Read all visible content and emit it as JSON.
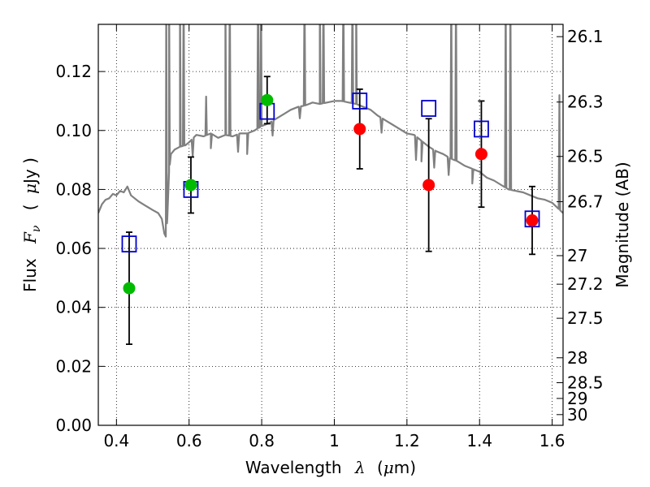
{
  "chart_data": {
    "type": "scatter",
    "xlabel_text": "Wavelength",
    "xlabel_symbol": "λ",
    "xlabel_unit_open": "(",
    "xlabel_unit_mu": "μ",
    "xlabel_unit_rest": "m)",
    "ylabel_text": "Flux",
    "ylabel_symbol": "F",
    "ylabel_sub": "ν",
    "ylabel_unit_open": "(",
    "ylabel_unit_mu": "μ",
    "ylabel_unit_rest": "Jy )",
    "y2label": "Magnitude (AB)",
    "xlim": [
      0.35,
      1.63
    ],
    "ylim": [
      0.0,
      0.136
    ],
    "xticks": [
      0.4,
      0.6,
      0.8,
      1.0,
      1.2,
      1.4,
      1.6
    ],
    "xtick_labels": [
      "0.4",
      "0.6",
      "0.8",
      "1",
      "1.2",
      "1.4",
      "1.6"
    ],
    "yticks": [
      0.0,
      0.02,
      0.04,
      0.06,
      0.08,
      0.1,
      0.12
    ],
    "ytick_labels": [
      "0.00",
      "0.02",
      "0.04",
      "0.06",
      "0.08",
      "0.10",
      "0.12"
    ],
    "mag_ticks": [
      26.1,
      26.3,
      26.5,
      26.7,
      27,
      27.2,
      27.5,
      28,
      28.5,
      29,
      30
    ],
    "mag_tick_labels": [
      "26.1",
      "26.3",
      "26.5",
      "26.7",
      "27",
      "27.2",
      "27.5",
      "28",
      "28.5",
      "29",
      "30"
    ],
    "grid": true,
    "colors": {
      "spectrum": "#808080",
      "model_box": "#0000cc",
      "detection_green": "#00bb00",
      "detection_red": "#ff0000",
      "errorbar": "#000000"
    },
    "model_points": [
      {
        "x": 0.435,
        "y": 0.0615
      },
      {
        "x": 0.605,
        "y": 0.08
      },
      {
        "x": 0.815,
        "y": 0.1065
      },
      {
        "x": 1.07,
        "y": 0.11
      },
      {
        "x": 1.26,
        "y": 0.1075
      },
      {
        "x": 1.405,
        "y": 0.1005
      },
      {
        "x": 1.545,
        "y": 0.07
      }
    ],
    "observed_points": [
      {
        "x": 0.435,
        "y": 0.0465,
        "err": 0.019,
        "color": "green"
      },
      {
        "x": 0.605,
        "y": 0.0815,
        "err": 0.0095,
        "color": "green"
      },
      {
        "x": 0.815,
        "y": 0.1103,
        "err": 0.008,
        "color": "green"
      },
      {
        "x": 1.07,
        "y": 0.1005,
        "err": 0.0135,
        "color": "red"
      },
      {
        "x": 1.26,
        "y": 0.0815,
        "err": 0.0225,
        "color": "red"
      },
      {
        "x": 1.405,
        "y": 0.092,
        "err": 0.018,
        "color": "red"
      },
      {
        "x": 1.545,
        "y": 0.0695,
        "err": 0.0115,
        "color": "red"
      }
    ],
    "spectrum": [
      [
        0.35,
        0.072
      ],
      [
        0.36,
        0.075
      ],
      [
        0.37,
        0.0765
      ],
      [
        0.38,
        0.077
      ],
      [
        0.39,
        0.0785
      ],
      [
        0.4,
        0.078
      ],
      [
        0.41,
        0.0795
      ],
      [
        0.42,
        0.079
      ],
      [
        0.43,
        0.081
      ],
      [
        0.44,
        0.078
      ],
      [
        0.45,
        0.077
      ],
      [
        0.46,
        0.076
      ],
      [
        0.48,
        0.0745
      ],
      [
        0.5,
        0.073
      ],
      [
        0.515,
        0.072
      ],
      [
        0.525,
        0.07
      ],
      [
        0.532,
        0.065
      ],
      [
        0.536,
        0.064
      ],
      [
        0.54,
        0.07
      ],
      [
        0.545,
        0.086
      ],
      [
        0.55,
        0.092
      ],
      [
        0.56,
        0.0935
      ],
      [
        0.575,
        0.0945
      ],
      [
        0.59,
        0.095
      ],
      [
        0.6,
        0.096
      ],
      [
        0.62,
        0.0985
      ],
      [
        0.64,
        0.098
      ],
      [
        0.66,
        0.099
      ],
      [
        0.68,
        0.0975
      ],
      [
        0.7,
        0.0985
      ],
      [
        0.72,
        0.098
      ],
      [
        0.74,
        0.099
      ],
      [
        0.76,
        0.099
      ],
      [
        0.78,
        0.1
      ],
      [
        0.8,
        0.1015
      ],
      [
        0.82,
        0.1025
      ],
      [
        0.84,
        0.104
      ],
      [
        0.86,
        0.1055
      ],
      [
        0.88,
        0.107
      ],
      [
        0.9,
        0.108
      ],
      [
        0.92,
        0.1085
      ],
      [
        0.94,
        0.1095
      ],
      [
        0.96,
        0.109
      ],
      [
        0.98,
        0.1095
      ],
      [
        1.0,
        0.11
      ],
      [
        1.02,
        0.11
      ],
      [
        1.04,
        0.1095
      ],
      [
        1.06,
        0.109
      ],
      [
        1.08,
        0.108
      ],
      [
        1.1,
        0.107
      ],
      [
        1.12,
        0.105
      ],
      [
        1.14,
        0.1035
      ],
      [
        1.16,
        0.102
      ],
      [
        1.18,
        0.1005
      ],
      [
        1.2,
        0.099
      ],
      [
        1.22,
        0.0985
      ],
      [
        1.24,
        0.0965
      ],
      [
        1.26,
        0.0945
      ],
      [
        1.28,
        0.093
      ],
      [
        1.3,
        0.092
      ],
      [
        1.32,
        0.0905
      ],
      [
        1.34,
        0.0895
      ],
      [
        1.36,
        0.088
      ],
      [
        1.38,
        0.087
      ],
      [
        1.4,
        0.086
      ],
      [
        1.42,
        0.084
      ],
      [
        1.44,
        0.083
      ],
      [
        1.46,
        0.0815
      ],
      [
        1.48,
        0.08
      ],
      [
        1.5,
        0.0795
      ],
      [
        1.52,
        0.079
      ],
      [
        1.54,
        0.078
      ],
      [
        1.56,
        0.077
      ],
      [
        1.58,
        0.0765
      ],
      [
        1.6,
        0.0755
      ],
      [
        1.63,
        0.072
      ]
    ],
    "emission_lines": [
      {
        "x": 0.537,
        "peak": 0.15
      },
      {
        "x": 0.545,
        "peak": 0.15
      },
      {
        "x": 0.575,
        "peak": 0.15
      },
      {
        "x": 0.585,
        "peak": 0.15
      },
      {
        "x": 0.647,
        "peak": 0.1115
      },
      {
        "x": 0.7,
        "peak": 0.15
      },
      {
        "x": 0.712,
        "peak": 0.15
      },
      {
        "x": 0.79,
        "peak": 0.15
      },
      {
        "x": 0.798,
        "peak": 0.15
      },
      {
        "x": 0.918,
        "peak": 0.15
      },
      {
        "x": 0.96,
        "peak": 0.15
      },
      {
        "x": 0.97,
        "peak": 0.15
      },
      {
        "x": 1.025,
        "peak": 0.15
      },
      {
        "x": 1.05,
        "peak": 0.15
      },
      {
        "x": 1.06,
        "peak": 0.15
      },
      {
        "x": 1.322,
        "peak": 0.15
      },
      {
        "x": 1.335,
        "peak": 0.15
      },
      {
        "x": 1.472,
        "peak": 0.15
      },
      {
        "x": 1.485,
        "peak": 0.15
      },
      {
        "x": 1.62,
        "peak": 0.112
      }
    ],
    "spectrum_dips": [
      {
        "x": 0.61,
        "depth": 0.006
      },
      {
        "x": 0.66,
        "depth": 0.005
      },
      {
        "x": 0.735,
        "depth": 0.006
      },
      {
        "x": 0.76,
        "depth": 0.007
      },
      {
        "x": 0.83,
        "depth": 0.005
      },
      {
        "x": 0.905,
        "depth": 0.004
      },
      {
        "x": 1.13,
        "depth": 0.005
      },
      {
        "x": 1.225,
        "depth": 0.008
      },
      {
        "x": 1.24,
        "depth": 0.007
      },
      {
        "x": 1.275,
        "depth": 0.006
      },
      {
        "x": 1.315,
        "depth": 0.006
      },
      {
        "x": 1.38,
        "depth": 0.005
      }
    ]
  }
}
